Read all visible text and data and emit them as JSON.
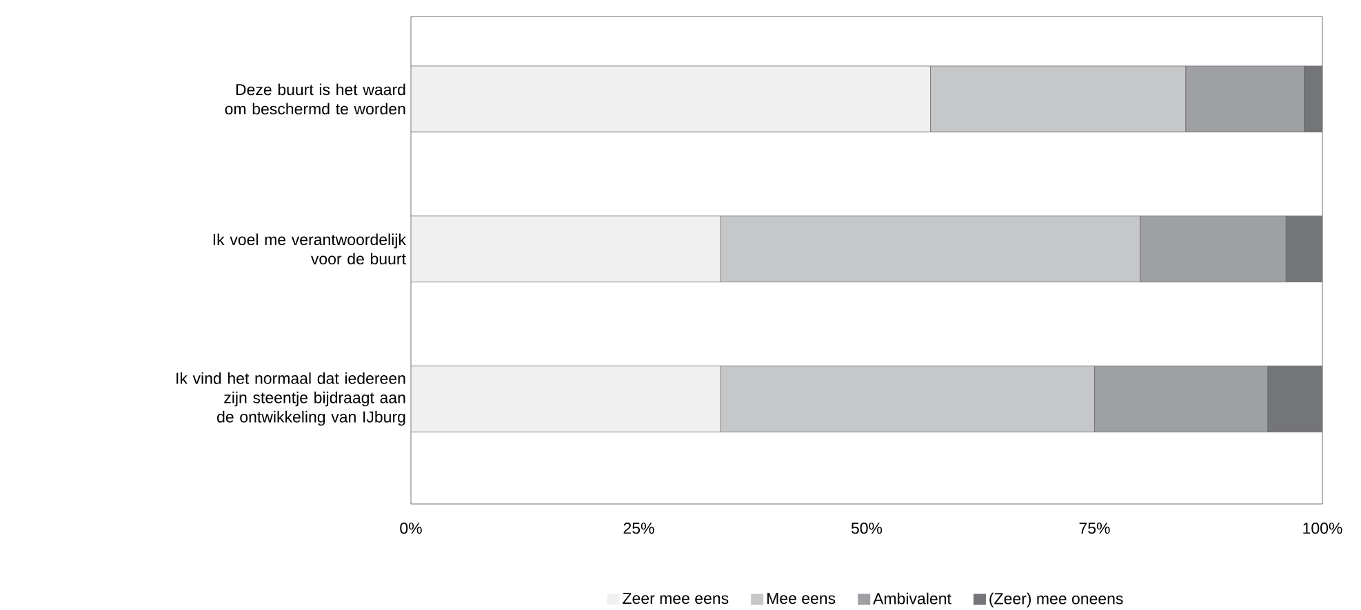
{
  "chart_data": {
    "type": "bar",
    "orientation": "horizontal",
    "stacked": true,
    "categories": [
      "Deze buurt is het waard om beschermd te worden",
      "Ik voel me verantwoordelijk voor de buurt",
      "Ik vind het normaal dat iedereen zijn steentje bijdraagt aan de ontwikkeling van IJburg"
    ],
    "series": [
      {
        "name": "Zeer mee eens",
        "color": "#f0f0f0",
        "values": [
          57,
          34,
          34
        ]
      },
      {
        "name": "Mee eens",
        "color": "#c6c7c9",
        "values": [
          28,
          46,
          41
        ]
      },
      {
        "name": "Ambivalent",
        "color": "#9fa0a3",
        "values": [
          13,
          16,
          19
        ]
      },
      {
        "name": "(Zeer) mee oneens",
        "color": "#747578",
        "values": [
          2,
          4,
          6
        ]
      }
    ],
    "xlim": [
      0,
      100
    ],
    "xticks": [
      {
        "value": 0,
        "label": "0%"
      },
      {
        "value": 25,
        "label": "25%"
      },
      {
        "value": 50,
        "label": "50%"
      },
      {
        "value": 75,
        "label": "75%"
      },
      {
        "value": 100,
        "label": "100%"
      }
    ],
    "grid": false,
    "legend": "bottom"
  }
}
